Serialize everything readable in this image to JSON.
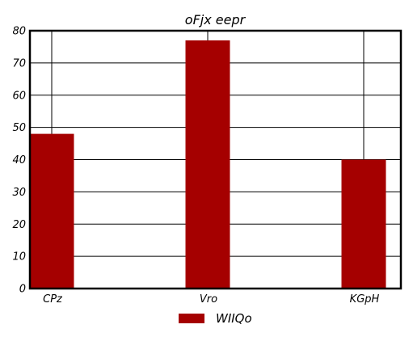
{
  "chart_data": {
    "type": "bar",
    "title": "oFjx eepr",
    "categories": [
      "CPz",
      "Vro",
      "KGpH"
    ],
    "series": [
      {
        "name": "WIIQo",
        "values": [
          48,
          77,
          40
        ],
        "color": "#a50000"
      }
    ],
    "xlabel": "",
    "ylabel": "",
    "ylim": [
      0,
      80
    ],
    "yticks": [
      "0",
      "10",
      "20",
      "30",
      "40",
      "50",
      "60",
      "70",
      "80"
    ],
    "grid": true,
    "legend": "bottom-center"
  }
}
